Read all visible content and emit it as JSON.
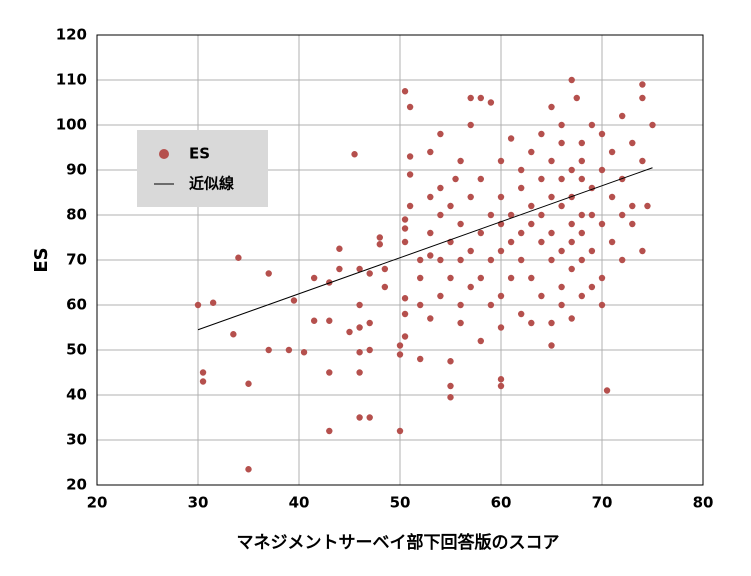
{
  "chart_data": {
    "type": "scatter",
    "x_label": "マネジメントサーベイ部下回答版のスコア",
    "y_label": "ES",
    "xlim": [
      20,
      80
    ],
    "xticks": [
      20,
      30,
      40,
      50,
      60,
      70,
      80
    ],
    "ylim": [
      20,
      120
    ],
    "yticks": [
      20,
      30,
      40,
      50,
      60,
      70,
      80,
      90,
      100,
      110,
      120
    ],
    "grid": true,
    "legend": "upper left",
    "series": [
      {
        "name": "ES",
        "type": "scatter",
        "color": "#b5504d",
        "x": [
          30,
          31.5,
          30.5,
          30.5,
          33.5,
          34,
          35,
          35,
          37,
          37,
          39,
          39.5,
          40.5,
          41.5,
          41.5,
          43,
          43,
          43,
          43,
          44,
          44,
          45,
          45.5,
          46,
          46,
          46,
          46,
          46,
          46,
          47,
          47,
          47,
          47,
          48,
          48,
          48.5,
          48.5,
          50,
          50,
          50,
          50.5,
          50.5,
          50.5,
          50.5,
          50.5,
          50.5,
          50.5,
          51,
          51,
          51,
          51,
          52,
          52,
          52,
          52,
          53,
          53,
          53,
          53,
          53,
          54,
          54,
          54,
          54,
          54,
          55,
          55,
          55,
          55,
          55,
          55,
          55.5,
          56,
          56,
          56,
          56,
          56,
          57,
          57,
          57,
          57,
          57,
          58,
          58,
          58,
          58,
          58,
          59,
          59,
          59,
          59,
          60,
          60,
          60,
          60,
          60,
          60,
          60,
          60,
          61,
          61,
          61,
          61,
          62,
          62,
          62,
          62,
          62,
          63,
          63,
          63,
          63,
          63,
          64,
          64,
          64,
          64,
          64,
          65,
          65,
          65,
          65,
          65,
          65,
          65,
          66,
          66,
          66,
          66,
          66,
          66,
          66,
          67,
          67,
          67,
          67,
          67,
          67,
          67,
          67.5,
          68,
          68,
          68,
          68,
          68,
          68,
          68,
          69,
          69,
          69,
          69,
          69,
          70,
          70,
          70,
          70,
          70,
          70.5,
          71,
          71,
          71,
          72,
          72,
          72,
          72,
          73,
          73,
          73,
          74,
          74,
          74,
          74,
          74.5,
          75
        ],
        "values": [
          60,
          60.5,
          45,
          43,
          53.5,
          70.5,
          42.5,
          23.5,
          67,
          50,
          50,
          61,
          49.5,
          56.5,
          66,
          45,
          32,
          65,
          56.5,
          72.5,
          68,
          54,
          93.5,
          68,
          60,
          55,
          49.5,
          45,
          35,
          35,
          67,
          56,
          50,
          73.5,
          75,
          64,
          68,
          51,
          49,
          32,
          53,
          58,
          61.5,
          74,
          77,
          79,
          107.5,
          82,
          104,
          93,
          89,
          60,
          66,
          70,
          48,
          71,
          84,
          94,
          76,
          57,
          62,
          70,
          80,
          86,
          98,
          42,
          39.5,
          47.5,
          66,
          74,
          82,
          88,
          56,
          60,
          70,
          78,
          92,
          106,
          100,
          84,
          64,
          72,
          106,
          88,
          76,
          52,
          66,
          80,
          105,
          60,
          70,
          42,
          43.5,
          55,
          62,
          72,
          78,
          84,
          92,
          97,
          74,
          80,
          66,
          86,
          90,
          76,
          58,
          70,
          82,
          78,
          94,
          56,
          66,
          88,
          74,
          80,
          98,
          62,
          84,
          92,
          104,
          76,
          70,
          56,
          51,
          82,
          88,
          96,
          100,
          72,
          64,
          60,
          110,
          90,
          84,
          78,
          74,
          68,
          57,
          106,
          88,
          92,
          96,
          80,
          76,
          62,
          70,
          86,
          100,
          72,
          64,
          80,
          90,
          98,
          78,
          66,
          60,
          41,
          84,
          94,
          74,
          102,
          88,
          80,
          70,
          96,
          82,
          78,
          106,
          109,
          92,
          72,
          82,
          100
        ]
      },
      {
        "name": "近似線",
        "type": "line",
        "color": "#000000",
        "x": [
          30,
          75
        ],
        "values": [
          54.5,
          90.5
        ]
      }
    ]
  }
}
